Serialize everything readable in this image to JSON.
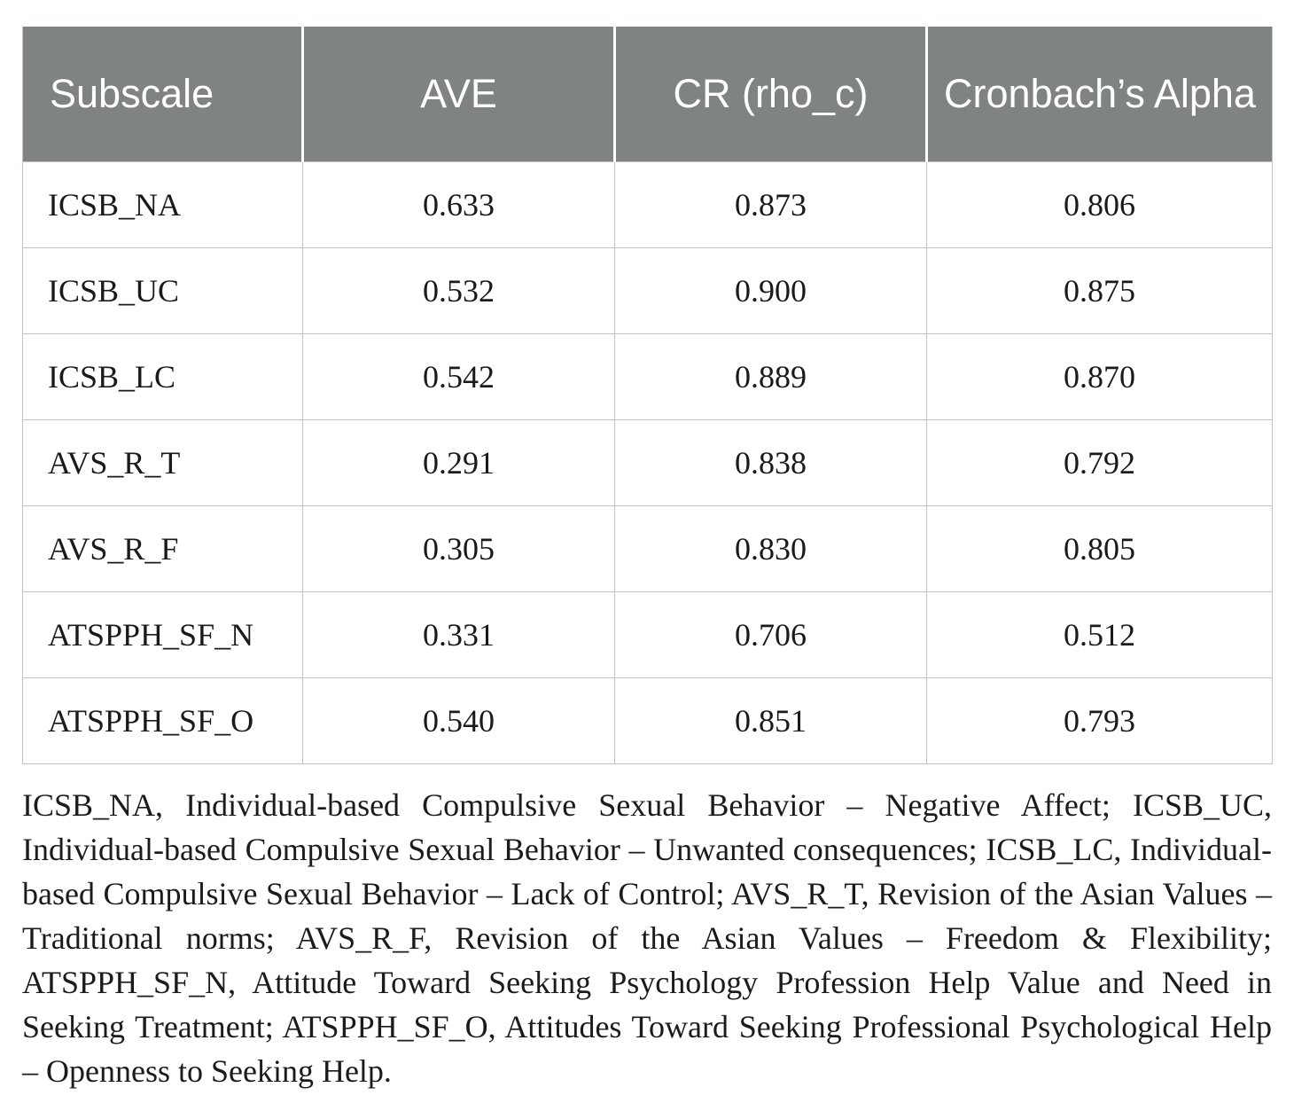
{
  "table": {
    "columns": [
      "Subscale",
      "AVE",
      "CR (rho_c)",
      "Cronbach’s Alpha"
    ],
    "rows": [
      [
        "ICSB_NA",
        "0.633",
        "0.873",
        "0.806"
      ],
      [
        "ICSB_UC",
        "0.532",
        "0.900",
        "0.875"
      ],
      [
        "ICSB_LC",
        "0.542",
        "0.889",
        "0.870"
      ],
      [
        "AVS_R_T",
        "0.291",
        "0.838",
        "0.792"
      ],
      [
        "AVS_R_F",
        "0.305",
        "0.830",
        "0.805"
      ],
      [
        "ATSPPH_SF_N",
        "0.331",
        "0.706",
        "0.512"
      ],
      [
        "ATSPPH_SF_O",
        "0.540",
        "0.851",
        "0.793"
      ]
    ]
  },
  "note": {
    "text": "ICSB_NA, Individual-based Compulsive Sexual Behavior – Negative Affect; ICSB_UC, Individual-based Compulsive Sexual Behavior – Unwanted consequences; ICSB_LC, Individual-based Compulsive Sexual Behavior – Lack of Control; AVS_R_T, Revision of the Asian Values – Traditional norms; AVS_R_F, Revision of the Asian Values – Freedom & Flexibility; ATSPPH_SF_N, Attitude Toward Seeking Psychology Profession Help Value and Need in Seeking Treatment; ATSPPH_SF_O, Attitudes Toward Seeking Professional Psychological Help – Openness to Seeking Help."
  },
  "colors": {
    "header_bg": "#7f8382",
    "header_text": "#ffffff",
    "body_text": "#1a1a1a",
    "border": "#c2c2c2"
  }
}
